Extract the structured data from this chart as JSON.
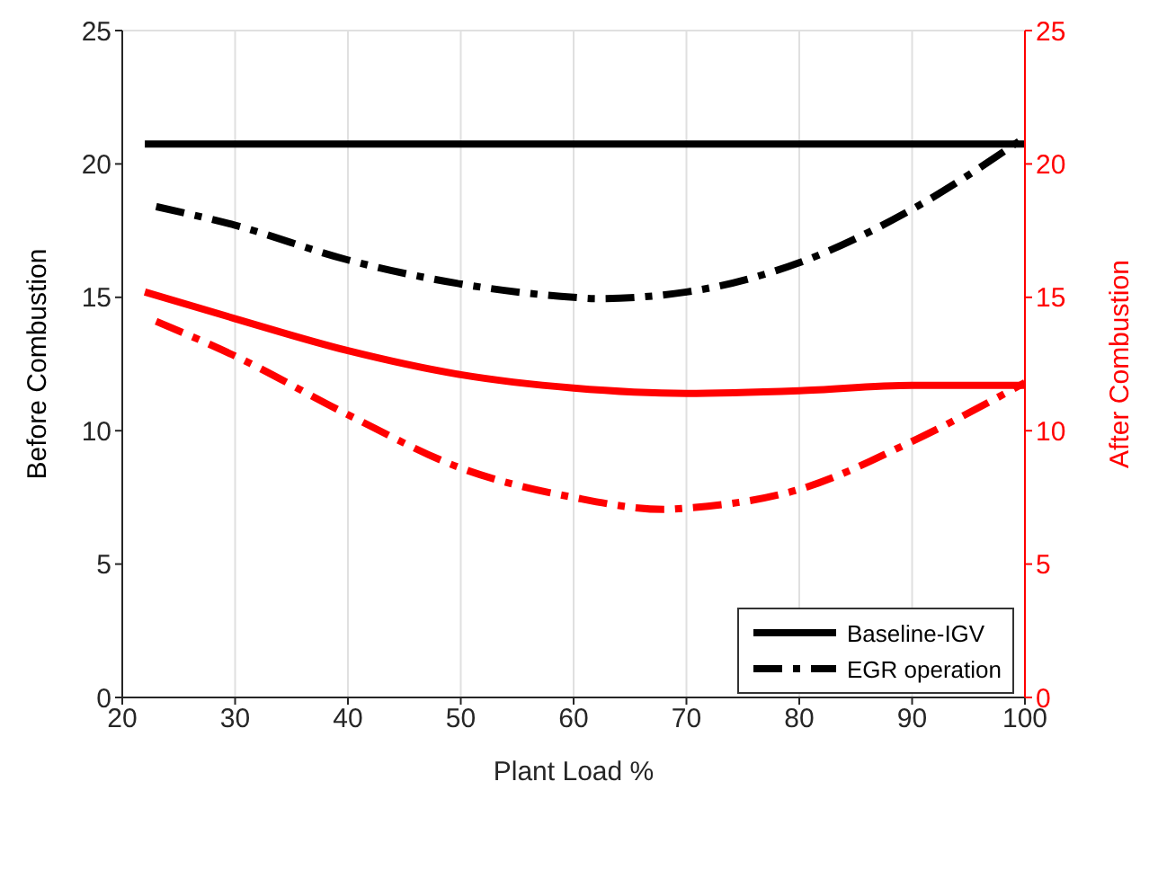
{
  "chart_data": {
    "type": "line",
    "xlabel": "Plant Load %",
    "ylabel": "Before Combustion",
    "y2label": "After Combustion",
    "xlim": [
      20,
      100
    ],
    "xticks": [
      20,
      30,
      40,
      50,
      60,
      70,
      80,
      90,
      100
    ],
    "ylim": [
      0,
      25
    ],
    "yticks": [
      0,
      5,
      10,
      15,
      20,
      25
    ],
    "y2lim": [
      0,
      25
    ],
    "y2ticks": [
      0,
      5,
      10,
      15,
      20,
      25
    ],
    "grid": true,
    "legend": "bottom right",
    "series": [
      {
        "name": "Baseline-IGV",
        "color": "#000000",
        "line_style": "solid",
        "x": [
          22,
          40,
          60,
          80,
          100
        ],
        "values": [
          20.75,
          20.75,
          20.75,
          20.75,
          20.75
        ]
      },
      {
        "name": "EGR operation",
        "color": "#000000",
        "line_style": "dashed",
        "x": [
          23,
          30,
          40,
          50,
          60,
          62,
          70,
          80,
          90,
          100
        ],
        "values": [
          18.4,
          17.7,
          16.4,
          15.5,
          15.0,
          14.95,
          15.2,
          16.3,
          18.3,
          21.0
        ]
      },
      {
        "color": "#ff0000",
        "line_style": "solid",
        "axis": "y2",
        "x": [
          22,
          30,
          40,
          50,
          60,
          70,
          80,
          90,
          97,
          100
        ],
        "values": [
          15.2,
          14.2,
          13.0,
          12.1,
          11.6,
          11.4,
          11.5,
          11.7,
          11.7,
          11.7
        ]
      },
      {
        "color": "#ff0000",
        "line_style": "dashed",
        "axis": "y2",
        "x": [
          23,
          30,
          40,
          50,
          60,
          68,
          70,
          80,
          90,
          100
        ],
        "values": [
          14.1,
          12.8,
          10.6,
          8.6,
          7.5,
          7.05,
          7.1,
          7.8,
          9.6,
          11.8
        ]
      }
    ]
  }
}
